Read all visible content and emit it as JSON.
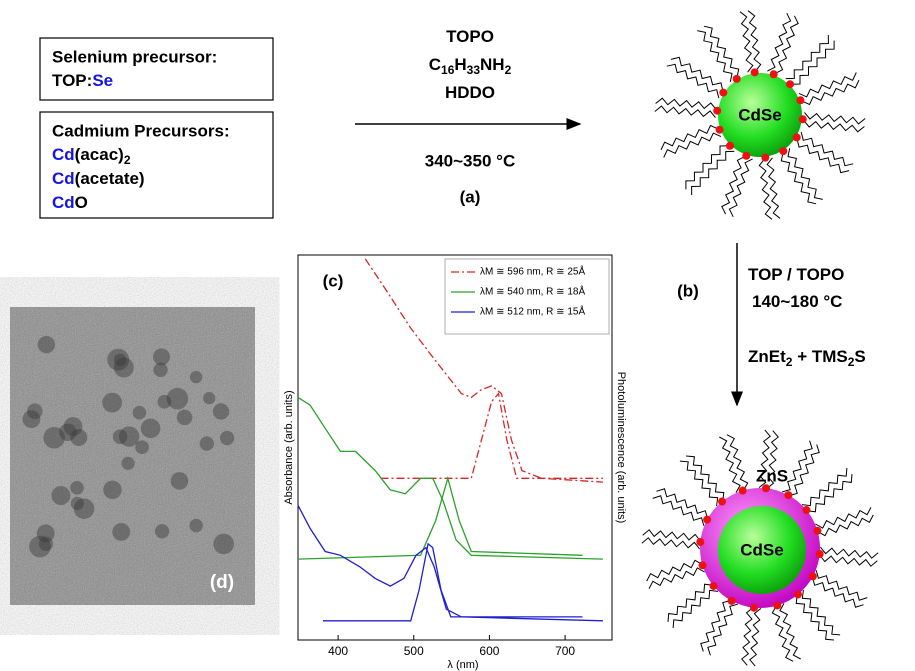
{
  "precursors": {
    "selenium_title": "Selenium precursor:",
    "selenium": {
      "text": "TOP:",
      "element": "Se"
    },
    "cadmium_title": "Cadmium Precursors:",
    "cadmium": [
      {
        "metal": "Cd",
        "rest": "(acac)",
        "sub": "2"
      },
      {
        "metal": "Cd",
        "rest": "(acetate)",
        "sub": ""
      },
      {
        "metal": "Cd",
        "rest": "O",
        "sub": ""
      }
    ]
  },
  "step_a": {
    "reagents": [
      [
        "TOPO"
      ],
      [
        "C",
        "16",
        "H",
        "33",
        "NH",
        "2"
      ],
      [
        "HDDO"
      ]
    ],
    "temperature": "340~350 °C",
    "label": "(a)"
  },
  "step_b": {
    "label": "(b)",
    "conditions": [
      [
        "TOP / TOPO"
      ],
      [
        "140~180 °C"
      ],
      [
        "ZnEt",
        "2",
        " + TMS",
        "2",
        "S"
      ]
    ]
  },
  "particles": {
    "core": "CdSe",
    "shell": "ZnS"
  },
  "image_label": "(d)",
  "chart_data": {
    "type": "line",
    "panel_label": "(c)",
    "x_label": "λ (nm)",
    "y_label": "Absorbance  (arb. units)",
    "y2_label": "Photoluminescence (arb. units)",
    "xlim": [
      347,
      762
    ],
    "xticks": [
      400,
      500,
      600,
      700
    ],
    "ylim": [
      0,
      1
    ],
    "series": [
      {
        "name": "λM ≅ 596 nm, R ≅ 25Å",
        "color": "#d62728",
        "dash": "dash-dot",
        "x": [
          436,
          463,
          496,
          523,
          543,
          563,
          576,
          589,
          603,
          616,
          629,
          643,
          669,
          750
        ],
        "values": [
          0.99,
          0.91,
          0.81,
          0.74,
          0.69,
          0.64,
          0.63,
          0.65,
          0.66,
          0.64,
          0.52,
          0.44,
          0.42,
          0.41
        ]
      },
      {
        "color": "#d62728",
        "dash": "dash-dot",
        "x": [
          456,
          576,
          603,
          612,
          623,
          636,
          750
        ],
        "values": [
          0.42,
          0.42,
          0.62,
          0.64,
          0.52,
          0.42,
          0.42
        ]
      },
      {
        "name": "λM ≅ 540 nm, R ≅ 18Å",
        "color": "#2ca02c",
        "dash": "solid",
        "x": [
          347,
          363,
          383,
          403,
          423,
          449,
          469,
          489,
          509,
          525,
          539,
          556,
          576,
          750
        ],
        "values": [
          0.63,
          0.61,
          0.55,
          0.49,
          0.49,
          0.44,
          0.39,
          0.38,
          0.42,
          0.42,
          0.36,
          0.26,
          0.22,
          0.21
        ]
      },
      {
        "color": "#2ca02c",
        "dash": "solid",
        "x": [
          347,
          509,
          529,
          545,
          560,
          576,
          723
        ],
        "values": [
          0.21,
          0.22,
          0.31,
          0.42,
          0.31,
          0.23,
          0.22
        ]
      },
      {
        "name": "λM ≅ 512 nm, R ≅ 15Å",
        "color": "#1f1fd0",
        "dash": "solid",
        "x": [
          347,
          363,
          383,
          403,
          429,
          449,
          469,
          487,
          503,
          516,
          527,
          543,
          563,
          750
        ],
        "values": [
          0.35,
          0.29,
          0.23,
          0.22,
          0.19,
          0.16,
          0.14,
          0.16,
          0.22,
          0.24,
          0.19,
          0.08,
          0.06,
          0.05
        ]
      },
      {
        "color": "#1f1fd0",
        "dash": "solid",
        "x": [
          380,
          496,
          507,
          519,
          525,
          536,
          549,
          576,
          723
        ],
        "values": [
          0.05,
          0.05,
          0.13,
          0.25,
          0.24,
          0.13,
          0.06,
          0.06,
          0.06
        ]
      }
    ]
  }
}
